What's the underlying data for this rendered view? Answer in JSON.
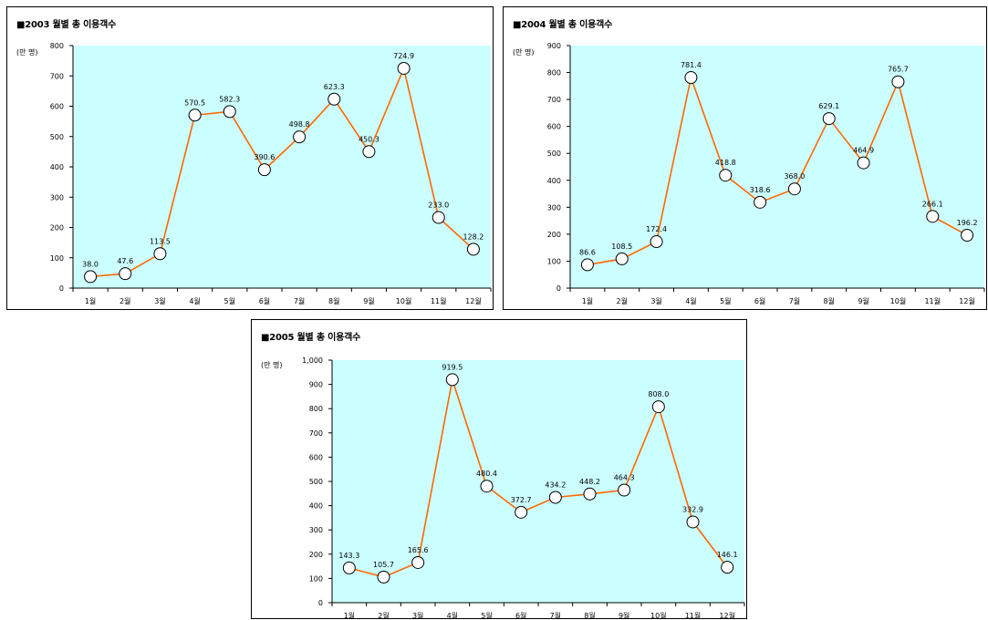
{
  "chart_data": [
    {
      "type": "line",
      "title": "■2003 월별 총 이용객수",
      "ylabel": "(만 명)",
      "categories": [
        "1월",
        "2월",
        "3월",
        "4월",
        "5월",
        "6월",
        "7월",
        "8월",
        "9월",
        "10월",
        "11월",
        "12월"
      ],
      "values": [
        38.0,
        47.6,
        113.5,
        570.5,
        582.3,
        390.6,
        498.8,
        623.3,
        450.3,
        724.9,
        233.0,
        128.2
      ],
      "data_labels": [
        "38.0",
        "47.6",
        "113.5",
        "570.5",
        "582.3",
        "390.6",
        "498.8",
        "623.3",
        "450.3",
        "724.9",
        "233.0",
        "128.2"
      ],
      "ylim": [
        0,
        800
      ],
      "yticks": [
        0,
        100,
        200,
        300,
        400,
        500,
        600,
        700,
        800
      ],
      "ytick_labels": [
        "0",
        "100",
        "200",
        "300",
        "400",
        "500",
        "600",
        "700",
        "800"
      ],
      "grid": false,
      "legend": "none"
    },
    {
      "type": "line",
      "title": "■2004 월별 총 이용객수",
      "ylabel": "(만 명)",
      "categories": [
        "1월",
        "2월",
        "3월",
        "4월",
        "5월",
        "6월",
        "7월",
        "8월",
        "9월",
        "10월",
        "11월",
        "12월"
      ],
      "values": [
        86.6,
        108.5,
        172.4,
        781.4,
        418.8,
        318.6,
        368.0,
        629.1,
        464.9,
        765.7,
        266.1,
        196.2
      ],
      "data_labels": [
        "86.6",
        "108.5",
        "172.4",
        "781.4",
        "418.8",
        "318.6",
        "368.0",
        "629.1",
        "464.9",
        "765.7",
        "266.1",
        "196.2"
      ],
      "ylim": [
        0,
        900
      ],
      "yticks": [
        0,
        100,
        200,
        300,
        400,
        500,
        600,
        700,
        800,
        900
      ],
      "ytick_labels": [
        "0",
        "100",
        "200",
        "300",
        "400",
        "500",
        "600",
        "700",
        "800",
        "900"
      ],
      "grid": false,
      "legend": "none"
    },
    {
      "type": "line",
      "title": "■2005 월별 총 이용객수",
      "ylabel": "(만 명)",
      "categories": [
        "1월",
        "2월",
        "3월",
        "4월",
        "5월",
        "6월",
        "7월",
        "8월",
        "9월",
        "10월",
        "11월",
        "12월"
      ],
      "values": [
        143.3,
        105.7,
        165.6,
        919.5,
        480.4,
        372.7,
        434.2,
        448.2,
        464.3,
        808.0,
        332.9,
        146.1
      ],
      "data_labels": [
        "143.3",
        "105.7",
        "165.6",
        "919.5",
        "480.4",
        "372.7",
        "434.2",
        "448.2",
        "464.3",
        "808.0",
        "332.9",
        "146.1"
      ],
      "ylim": [
        0,
        1000
      ],
      "yticks": [
        0,
        100,
        200,
        300,
        400,
        500,
        600,
        700,
        800,
        900,
        1000
      ],
      "ytick_labels": [
        "0",
        "100",
        "200",
        "300",
        "400",
        "500",
        "600",
        "700",
        "800",
        "900",
        "1,000"
      ],
      "grid": false,
      "legend": "none"
    }
  ],
  "colors": {
    "plot_bg": "#ccffff",
    "line": "#ff6600",
    "marker_fill": "#ffffff",
    "marker_stroke": "#000000"
  }
}
